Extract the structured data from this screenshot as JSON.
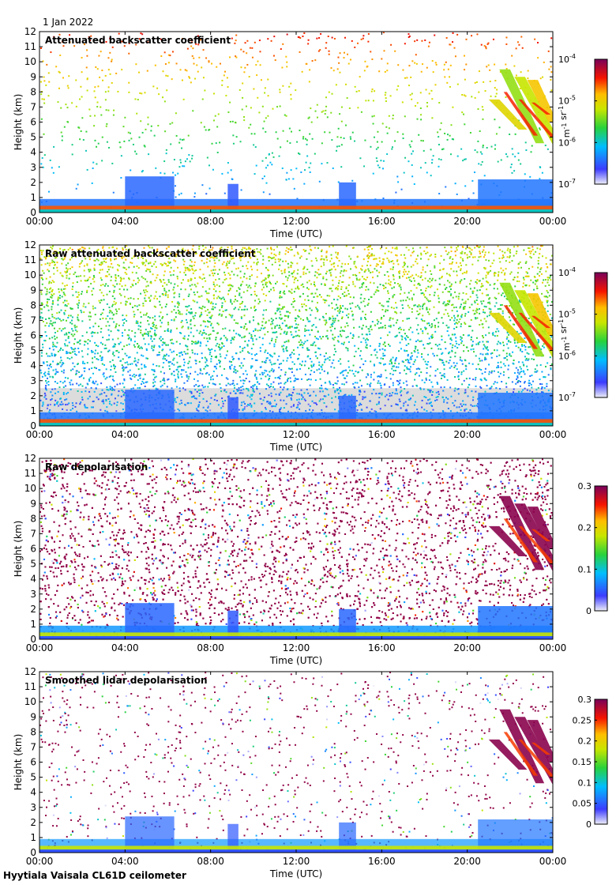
{
  "figure": {
    "date_label": "1 Jan 2022",
    "footer": "Hyytiala Vaisala CL61D ceilometer"
  },
  "chart_data": [
    {
      "type": "heatmap",
      "title": "Attenuated backscatter coefficient",
      "xlabel": "Time (UTC)",
      "ylabel": "Height (km)",
      "xticks": [
        "00:00",
        "04:00",
        "08:00",
        "12:00",
        "16:00",
        "20:00",
        "00:00"
      ],
      "xlim_hours": [
        0,
        24
      ],
      "yticks": [
        0,
        1,
        2,
        3,
        4,
        5,
        6,
        7,
        8,
        9,
        10,
        11,
        12
      ],
      "ylim": [
        0,
        12
      ],
      "colorbar": {
        "scale": "log",
        "ticks": [
          {
            "b": "10",
            "e": "-7"
          },
          {
            "b": "10",
            "e": "-6"
          },
          {
            "b": "10",
            "e": "-5"
          },
          {
            "b": "10",
            "e": "-4"
          }
        ],
        "units": "m^-1 sr^-1",
        "colormap": "jet-white"
      },
      "features": {
        "background": "white",
        "noise": "sparse",
        "cloud": "ice cloud 21:00-24:00, 4-9 km",
        "mask_grey": false
      }
    },
    {
      "type": "heatmap",
      "title": "Raw attenuated backscatter coefficient",
      "xlabel": "Time (UTC)",
      "ylabel": "Height (km)",
      "xticks": [
        "00:00",
        "04:00",
        "08:00",
        "12:00",
        "16:00",
        "20:00",
        "00:00"
      ],
      "xlim_hours": [
        0,
        24
      ],
      "yticks": [
        0,
        1,
        2,
        3,
        4,
        5,
        6,
        7,
        8,
        9,
        10,
        11,
        12
      ],
      "ylim": [
        0,
        12
      ],
      "colorbar": {
        "scale": "log",
        "ticks": [
          {
            "b": "10",
            "e": "-7"
          },
          {
            "b": "10",
            "e": "-6"
          },
          {
            "b": "10",
            "e": "-5"
          },
          {
            "b": "10",
            "e": "-4"
          }
        ],
        "units": "m^-1 sr^-1",
        "colormap": "jet-white"
      },
      "features": {
        "background": "dense noise",
        "noise": "dense",
        "cloud": "ice cloud 21:00-24:00, 4-9 km",
        "mask_grey": true
      }
    },
    {
      "type": "heatmap",
      "title": "Raw depolarisation",
      "xlabel": "Time (UTC)",
      "ylabel": "Height (km)",
      "xticks": [
        "00:00",
        "04:00",
        "08:00",
        "12:00",
        "16:00",
        "20:00",
        "00:00"
      ],
      "xlim_hours": [
        0,
        24
      ],
      "yticks": [
        0,
        1,
        2,
        3,
        4,
        5,
        6,
        7,
        8,
        9,
        10,
        11,
        12
      ],
      "ylim": [
        0,
        12
      ],
      "colorbar": {
        "scale": "linear",
        "ticks": [
          "0",
          "0.1",
          "0.2",
          "0.3"
        ],
        "range": [
          0,
          0.3
        ],
        "colormap": "jet-white"
      },
      "features": {
        "background": "saturated noise",
        "noise": "very dense",
        "cloud": "high depolarisation 21:00-24:00, 4-9 km",
        "mask_grey": false
      }
    },
    {
      "type": "heatmap",
      "title": "Smoothed lidar depolarisation",
      "xlabel": "Time (UTC)",
      "ylabel": "Height (km)",
      "xticks": [
        "00:00",
        "04:00",
        "08:00",
        "12:00",
        "16:00",
        "20:00",
        "00:00"
      ],
      "xlim_hours": [
        0,
        24
      ],
      "yticks": [
        0,
        1,
        2,
        3,
        4,
        5,
        6,
        7,
        8,
        9,
        10,
        11,
        12
      ],
      "ylim": [
        0,
        12
      ],
      "colorbar": {
        "scale": "linear",
        "ticks": [
          "0",
          "0.05",
          "0.1",
          "0.15",
          "0.2",
          "0.25",
          "0.3"
        ],
        "range": [
          0,
          0.3
        ],
        "colormap": "jet-white"
      },
      "features": {
        "background": "white",
        "noise": "sparse",
        "cloud": "high depolarisation 21:00-24:00, 4-9 km",
        "mask_grey": false
      }
    }
  ]
}
